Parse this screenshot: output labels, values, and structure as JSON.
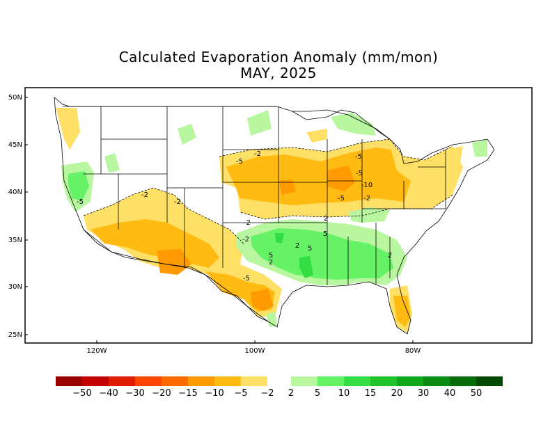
{
  "title": "Calculated Evaporation Anomaly (mm/mon)",
  "subtitle": "MAY, 2025",
  "lat_labels": [
    "50N",
    "45N",
    "40N",
    "35N",
    "30N",
    "25N"
  ],
  "lon_labels": [
    "120W",
    "100W",
    "80W"
  ],
  "contour_labels": [
    "-2",
    "-5",
    "-2",
    "-2",
    "-5",
    "-2",
    "-5",
    "-10",
    "-5",
    "-2",
    "2",
    "-2",
    "5",
    "5",
    "2",
    "-5",
    "2",
    "5",
    "2",
    "-5"
  ],
  "legend": {
    "neg_labels": [
      "−50",
      "−40",
      "−30",
      "−20",
      "−15",
      "−10",
      "−5",
      "−2"
    ],
    "pos_labels": [
      "2",
      "5",
      "10",
      "15",
      "20",
      "30",
      "40",
      "50"
    ],
    "neg_colors": [
      "#990000",
      "#c40000",
      "#e01c00",
      "#ff4400",
      "#ff6a00",
      "#ff9a00",
      "#ffbb11",
      "#ffe066"
    ],
    "pos_colors": [
      "#b8f7a0",
      "#66f266",
      "#33dd44",
      "#1ec42a",
      "#0fa81a",
      "#0a8a12",
      "#066d0a",
      "#034a05"
    ]
  },
  "colors": {
    "orange_light": "#ffe066",
    "orange_mid": "#ffbb11",
    "orange_dark": "#ff9a00",
    "green_light": "#b8f7a0",
    "green_mid": "#66f266",
    "green_dark": "#33dd44"
  }
}
